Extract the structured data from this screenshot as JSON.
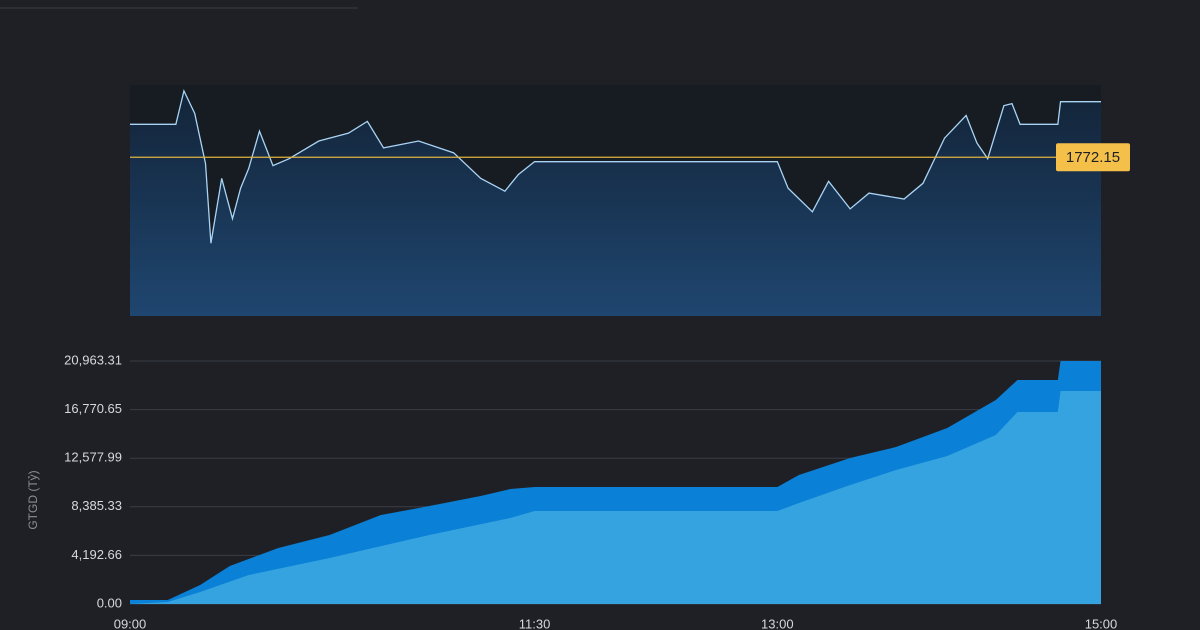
{
  "chart_data": [
    {
      "type": "line",
      "color": "#a9d4f5",
      "x": [
        "09:00",
        "09:17",
        "09:20",
        "09:24",
        "09:28",
        "09:30",
        "09:34",
        "09:38",
        "09:41",
        "09:44",
        "09:48",
        "09:53",
        "09:59",
        "10:10",
        "10:21",
        "10:28",
        "10:34",
        "10:47",
        "11:00",
        "11:10",
        "11:19",
        "11:24",
        "11:30",
        "13:00",
        "13:04",
        "13:13",
        "13:19",
        "13:27",
        "13:34",
        "13:47",
        "13:54",
        "14:02",
        "14:10",
        "14:14",
        "14:18",
        "14:24",
        "14:27",
        "14:30",
        "14:44",
        "14:45",
        "15:00"
      ],
      "values": [
        1775.5,
        1775.5,
        1778.9,
        1776.6,
        1771.5,
        1763.4,
        1770.0,
        1765.9,
        1769.0,
        1771.0,
        1774.8,
        1771.3,
        1772.0,
        1773.8,
        1774.6,
        1775.8,
        1773.1,
        1773.8,
        1772.6,
        1770.0,
        1768.7,
        1770.4,
        1771.7,
        1771.7,
        1769.0,
        1766.6,
        1769.7,
        1766.9,
        1768.5,
        1767.9,
        1769.5,
        1774.1,
        1776.4,
        1773.6,
        1772.0,
        1777.4,
        1777.6,
        1775.5,
        1775.5,
        1777.8,
        1777.8
      ],
      "xlim": [
        "09:00",
        "15:00"
      ],
      "ylim": [
        1756,
        1779.5
      ],
      "reference": {
        "value": 1772.15,
        "color": "#e0b341"
      }
    },
    {
      "type": "area",
      "y_label": "GTGD (Tỷ)",
      "series": [
        {
          "color": "#0a80d6",
          "x": [
            "09:00",
            "09:14",
            "09:26",
            "09:37",
            "09:55",
            "10:14",
            "10:33",
            "10:51",
            "11:10",
            "11:21",
            "11:30",
            "13:00",
            "13:08",
            "13:27",
            "13:44",
            "14:03",
            "14:21",
            "14:29",
            "14:44",
            "14:45",
            "15:00"
          ],
          "values": [
            345,
            345,
            1640,
            3280,
            4830,
            5950,
            7680,
            8450,
            9320,
            9920,
            10090,
            10090,
            11130,
            12600,
            13540,
            15180,
            17600,
            19320,
            19320,
            20963,
            20963
          ]
        },
        {
          "color": "#35a3e0",
          "x": [
            "09:00",
            "09:14",
            "09:26",
            "09:44",
            "10:14",
            "10:51",
            "11:21",
            "11:30",
            "13:00",
            "13:08",
            "13:27",
            "13:44",
            "14:03",
            "14:21",
            "14:29",
            "14:44",
            "14:45",
            "15:00"
          ],
          "values": [
            0,
            170,
            1035,
            2500,
            3970,
            5950,
            7420,
            8020,
            8020,
            8710,
            10270,
            11560,
            12770,
            14580,
            16560,
            16560,
            18380,
            18380
          ]
        }
      ],
      "xlim": [
        "09:00",
        "15:00"
      ],
      "xticks": [
        "09:00",
        "11:30",
        "13:00",
        "15:00"
      ],
      "ylim": [
        0,
        20963.31
      ],
      "yticks": [
        {
          "value": 0,
          "label": "0.00"
        },
        {
          "value": 4192.66,
          "label": "4,192.66"
        },
        {
          "value": 8385.33,
          "label": "8,385.33"
        },
        {
          "value": 12577.99,
          "label": "12,577.99"
        },
        {
          "value": 16770.65,
          "label": "16,770.65"
        },
        {
          "value": 20963.31,
          "label": "20,963.31"
        }
      ],
      "grid": true
    }
  ]
}
